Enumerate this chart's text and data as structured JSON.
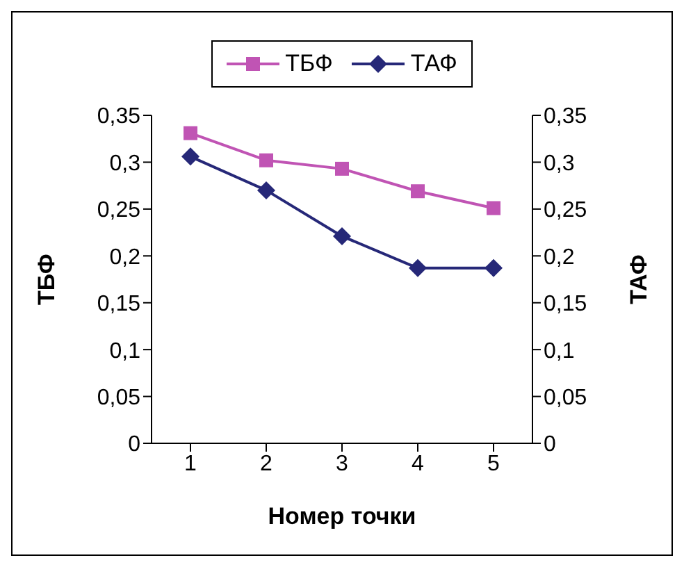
{
  "chart_data": {
    "type": "line",
    "xlabel": "Номер точки",
    "ylabel": "ТБФ",
    "y2label": "ТАФ",
    "categories": [
      "1",
      "2",
      "3",
      "4",
      "5"
    ],
    "series": [
      {
        "name": "ТБФ",
        "color": "#c054b4",
        "marker": "square",
        "values": [
          0.331,
          0.302,
          0.293,
          0.269,
          0.251
        ]
      },
      {
        "name": "ТАФ",
        "color": "#262878",
        "marker": "diamond",
        "axis": "y2",
        "values": [
          0.306,
          0.27,
          0.221,
          0.187,
          0.187
        ]
      }
    ],
    "ylim": [
      0,
      0.35
    ],
    "yticks": [
      {
        "value": 0,
        "label": "0"
      },
      {
        "value": 0.05,
        "label": "0,05"
      },
      {
        "value": 0.1,
        "label": "0,1"
      },
      {
        "value": 0.15,
        "label": "0,15"
      },
      {
        "value": 0.2,
        "label": "0,2"
      },
      {
        "value": 0.25,
        "label": "0,25"
      },
      {
        "value": 0.3,
        "label": "0,3"
      },
      {
        "value": 0.35,
        "label": "0,35"
      }
    ],
    "y2lim": [
      0,
      0.35
    ],
    "y2ticks": [
      {
        "value": 0,
        "label": "0"
      },
      {
        "value": 0.05,
        "label": "0,05"
      },
      {
        "value": 0.1,
        "label": "0,1"
      },
      {
        "value": 0.15,
        "label": "0,15"
      },
      {
        "value": 0.2,
        "label": "0,2"
      },
      {
        "value": 0.25,
        "label": "0,25"
      },
      {
        "value": 0.3,
        "label": "0,3"
      },
      {
        "value": 0.35,
        "label": "0,35"
      }
    ],
    "grid": false,
    "legend": "top",
    "line_style": "solid"
  }
}
